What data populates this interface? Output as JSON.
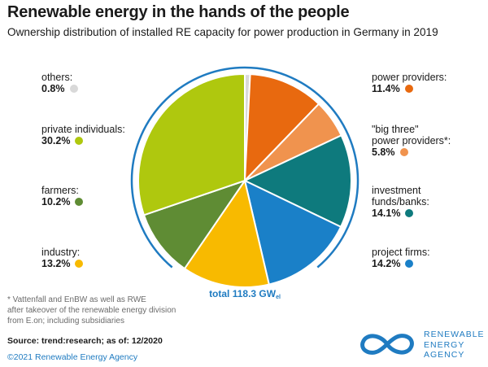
{
  "title": "Renewable energy in the hands of the people",
  "subtitle": "Ownership distribution of installed RE capacity for power production in Germany in 2019",
  "chart_data": {
    "type": "pie",
    "start": "top, clockwise",
    "slices": [
      {
        "label": "others:",
        "value": 0.8,
        "value_text": "0.8%",
        "color": "#d9d9d9"
      },
      {
        "label": "power providers:",
        "value": 11.4,
        "value_text": "11.4%",
        "color": "#e8690f"
      },
      {
        "label": "\"big three\"\npower providers*:",
        "value": 5.8,
        "value_text": "5.8%",
        "color": "#f0934e"
      },
      {
        "label": "investment\nfunds/banks:",
        "value": 14.1,
        "value_text": "14.1%",
        "color": "#0e7a7d"
      },
      {
        "label": "project firms:",
        "value": 14.2,
        "value_text": "14.2%",
        "color": "#1a80c8"
      },
      {
        "label": "industry:",
        "value": 13.2,
        "value_text": "13.2%",
        "color": "#f8ba00"
      },
      {
        "label": "farmers:",
        "value": 10.2,
        "value_text": "10.2%",
        "color": "#5f8c34"
      },
      {
        "label": "private individuals:",
        "value": 30.2,
        "value_text": "30.2%",
        "color": "#afc80e"
      }
    ],
    "total": {
      "prefix": "total",
      "value": "118.3",
      "unit": "GW",
      "sub": "el"
    }
  },
  "ring_color": "#1f7bc1",
  "footnote": "* Vattenfall and EnBW as well as RWE\nafter takeover of the renewable energy division\nfrom E.on; including subsidiaries",
  "source": "Source: trend:research; as of: 12/2020",
  "copyright": "©2021 Renewable Energy Agency",
  "logo": {
    "line1": "RENEWABLE",
    "line2": "ENERGY",
    "line3": "AGENCY",
    "icon": "infinity-icon",
    "color": "#1f7bc1"
  }
}
